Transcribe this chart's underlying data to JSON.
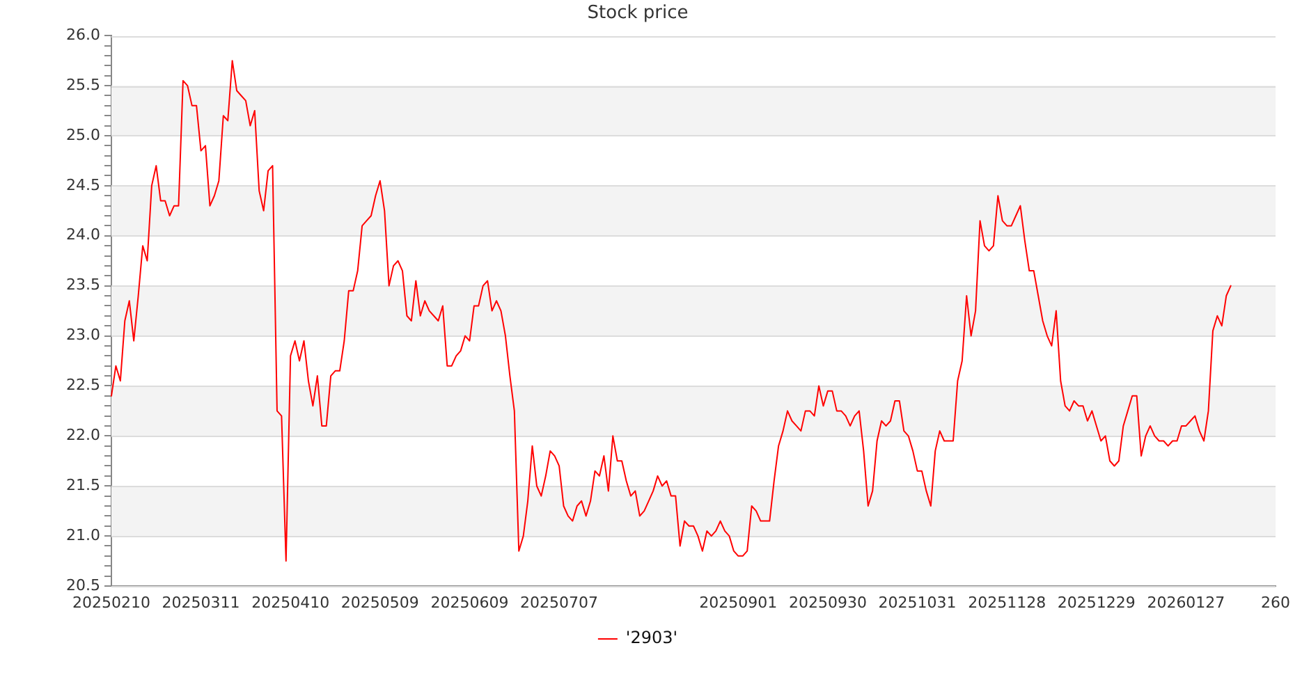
{
  "chart_data": {
    "type": "line",
    "title": "Stock price",
    "categories": [
      "20250210",
      null,
      null,
      null,
      null,
      null,
      null,
      null,
      null,
      null,
      null,
      null,
      null,
      null,
      null,
      null,
      null,
      null,
      null,
      null,
      "20250311",
      null,
      null,
      null,
      null,
      null,
      null,
      null,
      null,
      null,
      null,
      null,
      null,
      null,
      null,
      null,
      null,
      null,
      null,
      null,
      "20250410",
      null,
      null,
      null,
      null,
      null,
      null,
      null,
      null,
      null,
      null,
      null,
      null,
      null,
      null,
      null,
      null,
      null,
      null,
      null,
      "20250509",
      null,
      null,
      null,
      null,
      null,
      null,
      null,
      null,
      null,
      null,
      null,
      null,
      null,
      null,
      null,
      null,
      null,
      null,
      null,
      "20250609",
      null,
      null,
      null,
      null,
      null,
      null,
      null,
      null,
      null,
      null,
      null,
      null,
      null,
      null,
      null,
      null,
      null,
      null,
      null,
      "20250707",
      null,
      null,
      null,
      null,
      null,
      null,
      null,
      null,
      null,
      null,
      null,
      null,
      null,
      null,
      null,
      null,
      null,
      null,
      null,
      null,
      null,
      null,
      null,
      null,
      null,
      null,
      null,
      null,
      null,
      null,
      null,
      null,
      null,
      null,
      null,
      null,
      null,
      null,
      null,
      "20250901",
      null,
      null,
      null,
      null,
      null,
      null,
      null,
      null,
      null,
      null,
      null,
      null,
      null,
      null,
      null,
      null,
      null,
      null,
      null,
      "20250930",
      null,
      null,
      null,
      null,
      null,
      null,
      null,
      null,
      null,
      null,
      null,
      null,
      null,
      null,
      null,
      null,
      null,
      null,
      null,
      "20251031",
      null,
      null,
      null,
      null,
      null,
      null,
      null,
      null,
      null,
      null,
      null,
      null,
      null,
      null,
      null,
      null,
      null,
      null,
      null,
      "20251128",
      null,
      null,
      null,
      null,
      null,
      null,
      null,
      null,
      null,
      null,
      null,
      null,
      null,
      null,
      null,
      null,
      null,
      null,
      null,
      "20251229",
      null,
      null,
      null,
      null,
      null,
      null,
      null,
      null,
      null,
      null,
      null,
      null,
      null,
      null,
      null,
      null,
      null,
      null,
      null,
      "20260127",
      null,
      null,
      null,
      null,
      null,
      null,
      null,
      null,
      null,
      null,
      null,
      null,
      null,
      null,
      null,
      null,
      null,
      null,
      null,
      "260"
    ],
    "series": [
      {
        "name": "'2903'",
        "color": "#ff0000",
        "values": [
          22.4,
          22.7,
          22.55,
          23.15,
          23.35,
          22.95,
          23.4,
          23.9,
          23.75,
          24.5,
          24.7,
          24.35,
          24.35,
          24.2,
          24.3,
          24.3,
          25.55,
          25.5,
          25.3,
          25.3,
          24.85,
          24.9,
          24.3,
          24.4,
          24.55,
          25.2,
          25.15,
          25.75,
          25.45,
          25.4,
          25.35,
          25.1,
          25.25,
          24.45,
          24.25,
          24.65,
          24.7,
          22.25,
          22.2,
          20.75,
          22.8,
          22.95,
          22.75,
          22.95,
          22.55,
          22.3,
          22.6,
          22.1,
          22.1,
          22.6,
          22.65,
          22.65,
          22.95,
          23.45,
          23.45,
          23.65,
          24.1,
          24.15,
          24.2,
          24.4,
          24.55,
          24.25,
          23.5,
          23.7,
          23.75,
          23.65,
          23.2,
          23.15,
          23.55,
          23.2,
          23.35,
          23.25,
          23.2,
          23.15,
          23.3,
          22.7,
          22.7,
          22.8,
          22.85,
          23.0,
          22.95,
          23.3,
          23.3,
          23.5,
          23.55,
          23.25,
          23.35,
          23.25,
          23.0,
          22.6,
          22.25,
          20.85,
          21.0,
          21.35,
          21.9,
          21.5,
          21.4,
          21.6,
          21.85,
          21.8,
          21.7,
          21.3,
          21.2,
          21.15,
          21.3,
          21.35,
          21.2,
          21.35,
          21.65,
          21.6,
          21.8,
          21.45,
          22.0,
          21.75,
          21.75,
          21.55,
          21.4,
          21.45,
          21.2,
          21.25,
          21.35,
          21.45,
          21.6,
          21.5,
          21.55,
          21.4,
          21.4,
          20.9,
          21.15,
          21.1,
          21.1,
          21.0,
          20.85,
          21.05,
          21.0,
          21.05,
          21.15,
          21.05,
          21.0,
          20.85,
          20.8,
          20.8,
          20.85,
          21.3,
          21.25,
          21.15,
          21.15,
          21.15,
          21.55,
          21.9,
          22.05,
          22.25,
          22.15,
          22.1,
          22.05,
          22.25,
          22.25,
          22.2,
          22.5,
          22.3,
          22.45,
          22.45,
          22.25,
          22.25,
          22.2,
          22.1,
          22.2,
          22.25,
          21.85,
          21.3,
          21.45,
          21.95,
          22.15,
          22.1,
          22.15,
          22.35,
          22.35,
          22.05,
          22.0,
          21.85,
          21.65,
          21.65,
          21.45,
          21.3,
          21.85,
          22.05,
          21.95,
          21.95,
          21.95,
          22.55,
          22.75,
          23.4,
          23.0,
          23.25,
          24.15,
          23.9,
          23.85,
          23.9,
          24.4,
          24.15,
          24.1,
          24.1,
          24.2,
          24.3,
          23.95,
          23.65,
          23.65,
          23.4,
          23.15,
          23.0,
          22.9,
          23.25,
          22.55,
          22.3,
          22.25,
          22.35,
          22.3,
          22.3,
          22.15,
          22.25,
          22.1,
          21.95,
          22.0,
          21.75,
          21.7,
          21.75,
          22.1,
          22.25,
          22.4,
          22.4,
          21.8,
          22.0,
          22.1,
          22.0,
          21.95,
          21.95,
          21.9,
          21.95,
          21.95,
          22.1,
          22.1,
          22.15,
          22.2,
          22.05,
          21.95,
          22.25,
          23.05,
          23.2,
          23.1,
          23.4,
          23.5,
          null,
          null,
          null,
          null,
          null,
          null,
          null,
          null,
          null,
          null
        ]
      }
    ],
    "ylim": [
      20.5,
      26.0
    ],
    "yticks": [
      20.5,
      {
        "value": 20.6,
        "label": null
      },
      {
        "value": 20.7,
        "label": null
      },
      {
        "value": 20.8,
        "label": null
      },
      {
        "value": 20.9,
        "label": null
      },
      {
        "value": 21,
        "label": "21.0"
      },
      {
        "value": 21.1,
        "label": null
      },
      {
        "value": 21.2,
        "label": null
      },
      {
        "value": 21.3,
        "label": null
      },
      {
        "value": 21.4,
        "label": null
      },
      21.5,
      {
        "value": 21.6,
        "label": null
      },
      {
        "value": 21.7,
        "label": null
      },
      {
        "value": 21.8,
        "label": null
      },
      {
        "value": 21.9,
        "label": null
      },
      {
        "value": 22,
        "label": "22.0"
      },
      {
        "value": 22.1,
        "label": null
      },
      {
        "value": 22.2,
        "label": null
      },
      {
        "value": 22.3,
        "label": null
      },
      {
        "value": 22.4,
        "label": null
      },
      22.5,
      {
        "value": 22.6,
        "label": null
      },
      {
        "value": 22.7,
        "label": null
      },
      {
        "value": 22.8,
        "label": null
      },
      {
        "value": 22.9,
        "label": null
      },
      {
        "value": 23,
        "label": "23.0"
      },
      {
        "value": 23.1,
        "label": null
      },
      {
        "value": 23.2,
        "label": null
      },
      {
        "value": 23.3,
        "label": null
      },
      {
        "value": 23.4,
        "label": null
      },
      23.5,
      {
        "value": 23.6,
        "label": null
      },
      {
        "value": 23.7,
        "label": null
      },
      {
        "value": 23.8,
        "label": null
      },
      {
        "value": 23.9,
        "label": null
      },
      {
        "value": 24,
        "label": "24.0"
      },
      {
        "value": 24.1,
        "label": null
      },
      {
        "value": 24.2,
        "label": null
      },
      {
        "value": 24.3,
        "label": null
      },
      {
        "value": 24.4,
        "label": null
      },
      24.5,
      {
        "value": 24.6,
        "label": null
      },
      {
        "value": 24.7,
        "label": null
      },
      {
        "value": 24.8,
        "label": null
      },
      {
        "value": 24.9,
        "label": null
      },
      {
        "value": 25,
        "label": "25.0"
      },
      {
        "value": 25.1,
        "label": null
      },
      {
        "value": 25.2,
        "label": null
      },
      {
        "value": 25.3,
        "label": null
      },
      {
        "value": 25.4,
        "label": null
      },
      25.5,
      {
        "value": 25.6,
        "label": null
      },
      {
        "value": 25.7,
        "label": null
      },
      {
        "value": 25.8,
        "label": null
      },
      {
        "value": 25.9,
        "label": null
      },
      {
        "value": 26,
        "label": "26.0"
      }
    ],
    "grid": "y",
    "legend": "bottom",
    "marker": "none"
  }
}
